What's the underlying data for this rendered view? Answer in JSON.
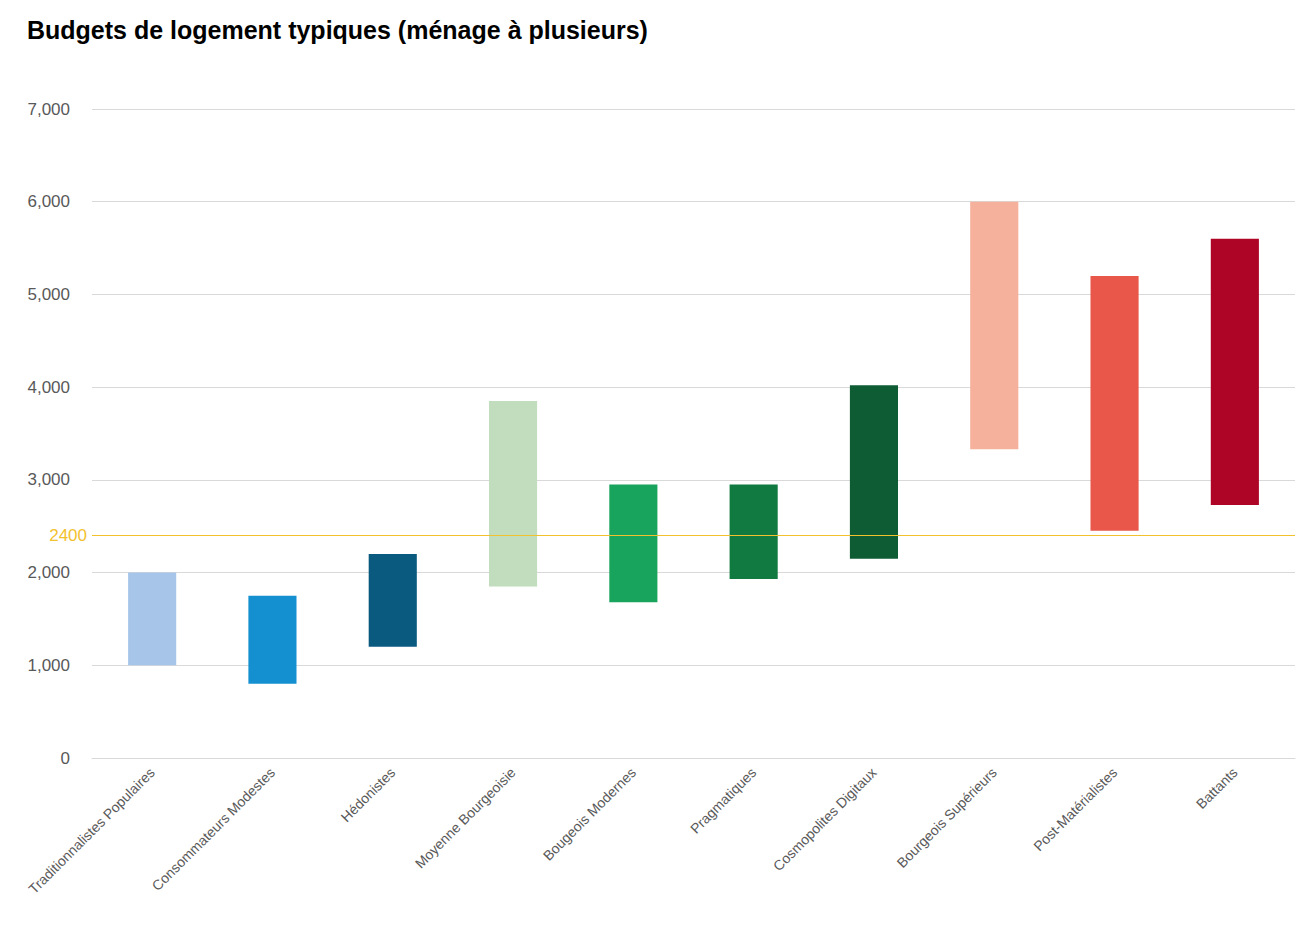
{
  "chart_data": {
    "type": "bar",
    "title": "Budgets de logement typiques (ménage à plusieurs)",
    "categories": [
      "Traditionnalistes Populaires",
      "Consommateurs Modestes",
      "Hédonistes",
      "Moyenne Bourgeoisie",
      "Bougeois Modernes",
      "Pragmatiques",
      "Cosmopolites Digitaux",
      "Bourgeois Supérieurs",
      "Post-Matérialistes",
      "Battants"
    ],
    "low": [
      1000,
      800,
      1200,
      1850,
      1680,
      1930,
      2150,
      3330,
      2450,
      2730
    ],
    "high": [
      2000,
      1750,
      2200,
      3850,
      2950,
      2950,
      4020,
      6000,
      5200,
      5600
    ],
    "colors": [
      "#a6c5e9",
      "#1490d0",
      "#0a5a80",
      "#c2dcbe",
      "#18a45c",
      "#107a40",
      "#0d5c33",
      "#f5b19b",
      "#e8574a",
      "#ae0527"
    ],
    "ylim": [
      0,
      7000
    ],
    "yticks": [
      0,
      1000,
      2000,
      3000,
      4000,
      5000,
      6000,
      7000
    ],
    "grid": true,
    "hline": {
      "y": 2400,
      "color": "#f2c12e"
    }
  }
}
